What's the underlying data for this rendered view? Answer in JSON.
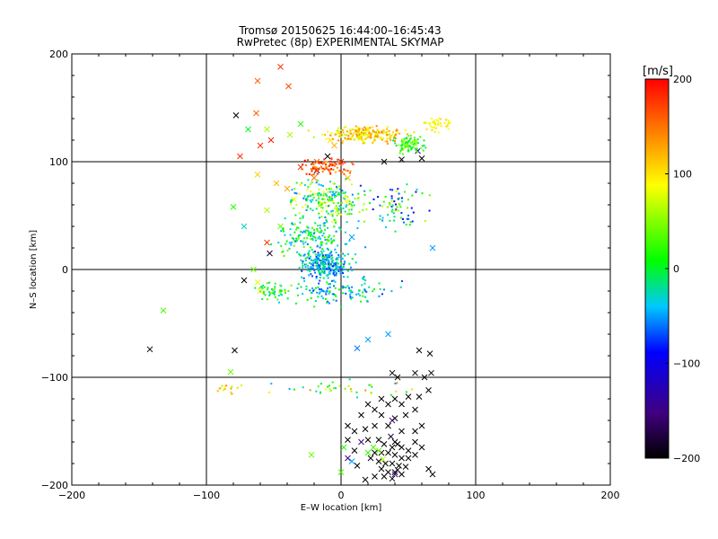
{
  "chart_data": {
    "type": "scatter",
    "title": "Tromsø 20150625 16:44:00–16:45:43",
    "subtitle": "RwPretec (8p) EXPERIMENTAL SKYMAP",
    "xlabel": "E–W location [km]",
    "ylabel": "N–S location [km]",
    "xlim": [
      -200,
      200
    ],
    "ylim": [
      -200,
      200
    ],
    "xticks": [
      -200,
      -100,
      0,
      100,
      200
    ],
    "yticks": [
      -200,
      -100,
      0,
      100,
      200
    ],
    "grid": true,
    "colorbar": {
      "label": "[m/s]",
      "range": [
        -200,
        200
      ],
      "ticks": [
        200,
        100,
        0,
        -100,
        -200
      ],
      "colormap": [
        "#000000",
        "#400080",
        "#0000ff",
        "#00c8ff",
        "#00ff00",
        "#ffff00",
        "#ff8000",
        "#ff0000"
      ]
    },
    "point_series": [
      {
        "marker": "cross",
        "points": [
          [
            -45,
            188,
            180
          ],
          [
            -62,
            175,
            160
          ],
          [
            -39,
            170,
            170
          ],
          [
            -78,
            143,
            -200
          ],
          [
            -63,
            145,
            160
          ],
          [
            -55,
            130,
            60
          ],
          [
            -69,
            130,
            0
          ],
          [
            -52,
            120,
            190
          ],
          [
            -60,
            115,
            180
          ],
          [
            -75,
            105,
            180
          ],
          [
            -38,
            125,
            60
          ],
          [
            -30,
            135,
            20
          ],
          [
            -30,
            95,
            180
          ],
          [
            -62,
            88,
            110
          ],
          [
            -48,
            80,
            120
          ],
          [
            -40,
            75,
            130
          ],
          [
            -35,
            65,
            80
          ],
          [
            -55,
            55,
            60
          ],
          [
            -45,
            40,
            40
          ],
          [
            -10,
            105,
            -200
          ],
          [
            -18,
            92,
            -180
          ],
          [
            -5,
            115,
            120
          ],
          [
            -8,
            120,
            100
          ],
          [
            0,
            100,
            190
          ],
          [
            5,
            85,
            120
          ],
          [
            -20,
            85,
            150
          ],
          [
            -2,
            127,
            100
          ],
          [
            -18,
            100,
            160
          ],
          [
            32,
            100,
            -200
          ],
          [
            45,
            102,
            -200
          ],
          [
            60,
            103,
            -200
          ],
          [
            57,
            110,
            -100
          ],
          [
            -5,
            70,
            -50
          ],
          [
            8,
            30,
            -50
          ],
          [
            -55,
            25,
            180
          ],
          [
            -53,
            15,
            -180
          ],
          [
            -62,
            -12,
            80
          ],
          [
            -72,
            -10,
            -200
          ],
          [
            -60,
            -20,
            80
          ],
          [
            -65,
            0,
            40
          ],
          [
            -72,
            40,
            -30
          ],
          [
            -80,
            58,
            20
          ],
          [
            -132,
            -38,
            30
          ],
          [
            -142,
            -74,
            -200
          ],
          [
            -79,
            -75,
            -200
          ],
          [
            -82,
            -95,
            40
          ],
          [
            68,
            20,
            -50
          ],
          [
            12,
            -73,
            -60
          ],
          [
            20,
            -65,
            -50
          ],
          [
            35,
            -60,
            -50
          ],
          [
            58,
            -75,
            -200
          ],
          [
            66,
            -78,
            -200
          ],
          [
            55,
            -96,
            -200
          ],
          [
            62,
            -100,
            -200
          ],
          [
            65,
            -112,
            -200
          ],
          [
            38,
            -96,
            -200
          ],
          [
            42,
            -100,
            -200
          ],
          [
            50,
            -118,
            -200
          ],
          [
            58,
            -118,
            -200
          ],
          [
            67,
            -96,
            -200
          ],
          [
            30,
            -120,
            -200
          ],
          [
            35,
            -125,
            -200
          ],
          [
            40,
            -120,
            -200
          ],
          [
            45,
            -125,
            -200
          ],
          [
            20,
            -125,
            -200
          ],
          [
            15,
            -135,
            -200
          ],
          [
            25,
            -130,
            -200
          ],
          [
            30,
            -135,
            -200
          ],
          [
            40,
            -138,
            -200
          ],
          [
            48,
            -135,
            -200
          ],
          [
            55,
            -130,
            -200
          ],
          [
            5,
            -145,
            -200
          ],
          [
            10,
            -150,
            -200
          ],
          [
            18,
            -148,
            -200
          ],
          [
            25,
            -145,
            -200
          ],
          [
            35,
            -145,
            -200
          ],
          [
            45,
            -150,
            -200
          ],
          [
            55,
            -150,
            -200
          ],
          [
            60,
            -145,
            -200
          ],
          [
            20,
            -158,
            -200
          ],
          [
            28,
            -158,
            -200
          ],
          [
            32,
            -162,
            -200
          ],
          [
            38,
            -165,
            -200
          ],
          [
            42,
            -162,
            -200
          ],
          [
            45,
            -165,
            -200
          ],
          [
            50,
            -168,
            -200
          ],
          [
            55,
            -160,
            -200
          ],
          [
            60,
            -165,
            -200
          ],
          [
            25,
            -170,
            -200
          ],
          [
            30,
            -170,
            -200
          ],
          [
            35,
            -170,
            -200
          ],
          [
            40,
            -172,
            -200
          ],
          [
            45,
            -175,
            -200
          ],
          [
            50,
            -175,
            -200
          ],
          [
            55,
            -172,
            -200
          ],
          [
            15,
            -160,
            -150
          ],
          [
            22,
            -175,
            -200
          ],
          [
            28,
            -178,
            -200
          ],
          [
            33,
            -180,
            -200
          ],
          [
            38,
            -180,
            -200
          ],
          [
            43,
            -182,
            -200
          ],
          [
            48,
            -183,
            -200
          ],
          [
            30,
            -185,
            -200
          ],
          [
            35,
            -188,
            -200
          ],
          [
            40,
            -188,
            -200
          ],
          [
            45,
            -190,
            -200
          ],
          [
            32,
            -192,
            -200
          ],
          [
            38,
            -194,
            -200
          ],
          [
            42,
            -186,
            -200
          ],
          [
            10,
            -168,
            -200
          ],
          [
            5,
            -158,
            -200
          ],
          [
            12,
            -182,
            -200
          ],
          [
            25,
            -192,
            -200
          ],
          [
            18,
            -195,
            -200
          ],
          [
            65,
            -185,
            -200
          ],
          [
            68,
            -190,
            -200
          ],
          [
            40,
            -160,
            -200
          ],
          [
            37,
            -155,
            -180
          ],
          [
            31,
            -176,
            60
          ],
          [
            28,
            -168,
            40
          ],
          [
            20,
            -170,
            20
          ],
          [
            24,
            -165,
            30
          ],
          [
            8,
            -178,
            -50
          ],
          [
            0,
            -188,
            30
          ],
          [
            2,
            -165,
            20
          ],
          [
            -22,
            -172,
            40
          ],
          [
            5,
            -175,
            -150
          ],
          [
            40,
            -190,
            -150
          ],
          [
            38,
            -140,
            -150
          ]
        ]
      }
    ]
  }
}
